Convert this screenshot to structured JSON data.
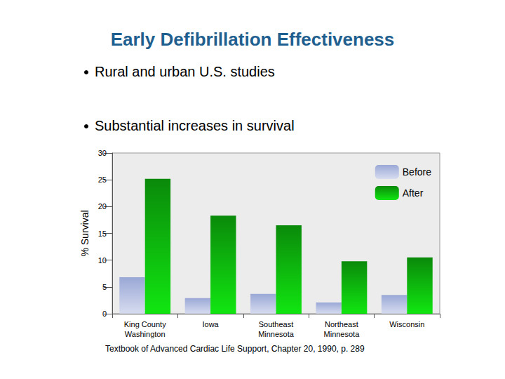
{
  "chart_data": {
    "type": "bar",
    "title": "Early Defibrillation Effectiveness",
    "annotations": [
      "Rural and urban U.S. studies",
      "Substantial increases in survival"
    ],
    "source": "Textbook of Advanced Cardiac Life Support, Chapter 20, 1990, p. 289",
    "y_label": "% Survival",
    "categories": [
      "King County\nWashington",
      "Iowa",
      "Southeast\nMinnesota",
      "Northeast\nMinnesota",
      "Wisconsin"
    ],
    "series": [
      {
        "name": "Before",
        "color": "#9aa8d6",
        "values": [
          6.8,
          2.9,
          3.7,
          2.1,
          3.5
        ]
      },
      {
        "name": "After",
        "color": "#0a8a0a",
        "values": [
          25.2,
          18.3,
          16.5,
          9.8,
          10.5
        ]
      }
    ],
    "ylim": [
      0,
      30
    ],
    "yticks": [
      0,
      5,
      10,
      15,
      20,
      25,
      30
    ],
    "grid": false,
    "legend": "upper right"
  }
}
